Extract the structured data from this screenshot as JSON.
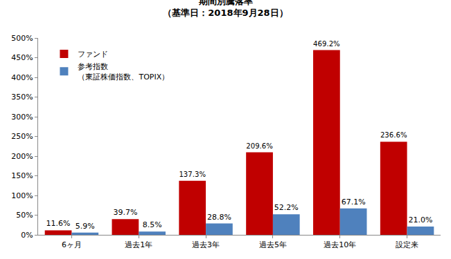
{
  "chart_data": {
    "type": "bar",
    "title": "期間別騰落率",
    "subtitle": "（基準日：2018年9月28日）",
    "categories": [
      "6ヶ月",
      "過去1年",
      "過去3年",
      "過去5年",
      "過去10年",
      "設定来"
    ],
    "series": [
      {
        "name": "ファンド",
        "color": "#C00000",
        "values": [
          11.6,
          39.7,
          137.3,
          209.6,
          469.2,
          236.6
        ],
        "value_labels": [
          "11.6%",
          "39.7%",
          "137.3%",
          "209.6%",
          "469.2%",
          "236.6%"
        ]
      },
      {
        "name": "参考指数\n（東証株価指数、TOPIX）",
        "color": "#4F81BD",
        "values": [
          5.9,
          8.5,
          28.8,
          52.2,
          67.1,
          21.0
        ],
        "value_labels": [
          "5.9%",
          "8.5%",
          "28.8%",
          "52.2%",
          "67.1%",
          "21.0%"
        ]
      }
    ],
    "ylim": [
      0,
      500
    ],
    "yticks": [
      {
        "value": 0,
        "label": "0%"
      },
      {
        "value": 50,
        "label": "50%"
      },
      {
        "value": 100,
        "label": "100%"
      },
      {
        "value": 150,
        "label": "150%"
      },
      {
        "value": 200,
        "label": "200%"
      },
      {
        "value": 250,
        "label": "250%"
      },
      {
        "value": 300,
        "label": "300%"
      },
      {
        "value": 350,
        "label": "350%"
      },
      {
        "value": 400,
        "label": "400%"
      },
      {
        "value": 450,
        "label": "450%"
      },
      {
        "value": 500,
        "label": "500%"
      }
    ],
    "grid": false,
    "legend": "upper left",
    "data_labels": true
  }
}
